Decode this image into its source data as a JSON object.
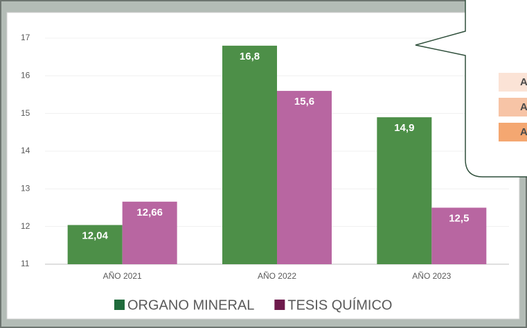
{
  "chart_data": {
    "type": "bar",
    "categories": [
      "AÑO 2021",
      "AÑO 2022",
      "AÑO 2023"
    ],
    "series": [
      {
        "name": "ORGANO MINERAL",
        "color": "#4d8f48",
        "legend_color": "#1f6b3b",
        "values": [
          12.04,
          16.8,
          14.9
        ],
        "value_labels": [
          "12,04",
          "16,8",
          "14,9"
        ]
      },
      {
        "name": "TESIS QUÍMICO",
        "color": "#b866a1",
        "legend_color": "#6e1a4c",
        "values": [
          12.66,
          15.6,
          12.5
        ],
        "value_labels": [
          "12,66",
          "15,6",
          "12,5"
        ]
      }
    ],
    "ylim": [
      11,
      17
    ],
    "yticks": [
      11,
      12,
      13,
      14,
      15,
      16,
      17
    ],
    "grid": true,
    "legend": "bottom"
  },
  "callout": {
    "rows": [
      "A",
      "A",
      "A"
    ],
    "row_colors": [
      "#fbe3d6",
      "#f7c4a6",
      "#f4a771"
    ]
  }
}
